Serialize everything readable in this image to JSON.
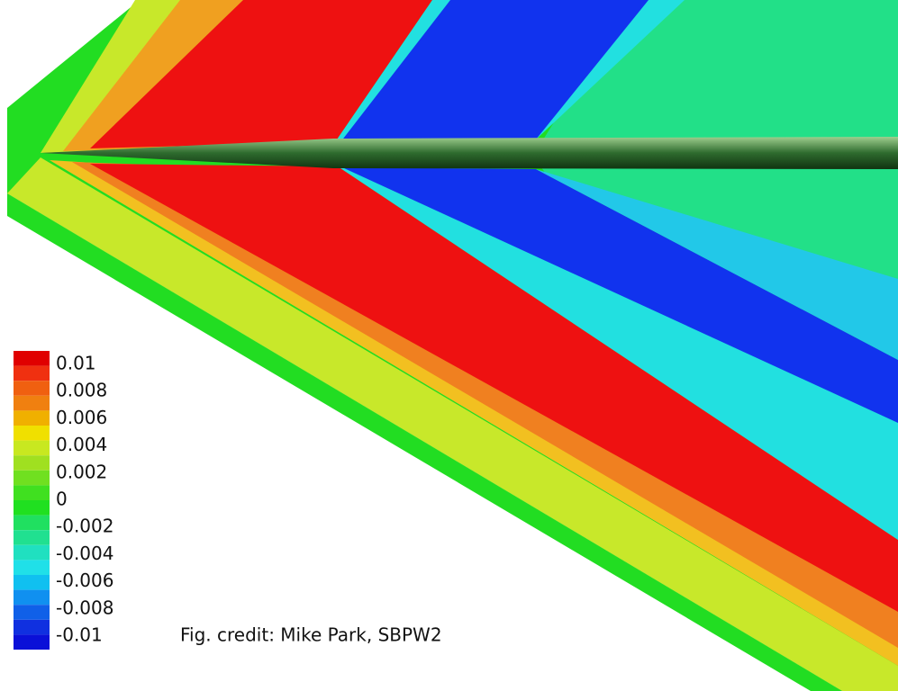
{
  "legend": {
    "ticks": [
      0.01,
      0.008,
      0.006,
      0.004,
      0.002,
      0,
      -0.002,
      -0.004,
      -0.006,
      -0.008,
      -0.01
    ]
  },
  "caption": "Fig. credit: Mike Park, SBPW2"
}
